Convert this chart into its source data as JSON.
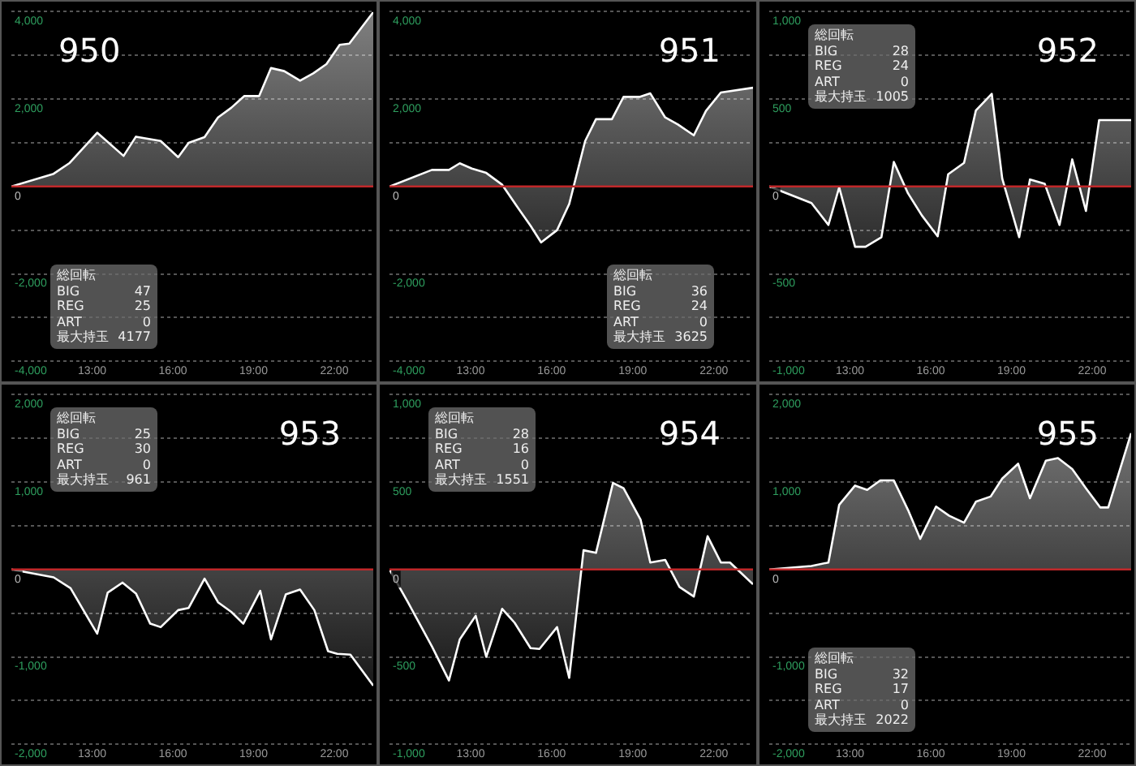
{
  "chart_data": [
    {
      "type": "area",
      "title": "950",
      "color": "#ffffff",
      "xlim": [
        10,
        23.45
      ],
      "xticks": [
        {
          "value": 13,
          "label": "13:00"
        },
        {
          "value": 16,
          "label": "16:00"
        },
        {
          "value": 19,
          "label": "19:00"
        },
        {
          "value": 22,
          "label": "22:00"
        }
      ],
      "ylim": [
        -4000,
        4000
      ],
      "yticks": [
        {
          "value": -4000,
          "label": "-4,000"
        },
        {
          "value": -3000,
          "label": null
        },
        {
          "value": -2000,
          "label": "-2,000"
        },
        {
          "value": -1000,
          "label": null
        },
        {
          "value": 0,
          "label": "0"
        },
        {
          "value": 1000,
          "label": null
        },
        {
          "value": 2000,
          "label": "2,000"
        },
        {
          "value": 3000,
          "label": null
        },
        {
          "value": 4000,
          "label": "4,000"
        }
      ],
      "grid": "y",
      "ref_lines": [
        {
          "axis": "y",
          "value": 0,
          "color": "#c0282a"
        }
      ],
      "annotations": [
        "総回転",
        "BIG 47",
        "REG 25",
        "ART 0",
        "最大持玉 4177"
      ],
      "x": [
        10,
        11.57,
        12.17,
        13.19,
        14.17,
        14.63,
        15.55,
        16.2,
        16.59,
        17.18,
        17.68,
        18.17,
        18.66,
        19.21,
        19.65,
        20.14,
        20.73,
        21.22,
        21.71,
        22.2,
        22.56,
        23.45
      ],
      "values": [
        0,
        290,
        540,
        1230,
        700,
        1140,
        1040,
        670,
        1000,
        1130,
        1580,
        1800,
        2070,
        2070,
        2710,
        2640,
        2420,
        2590,
        2800,
        3240,
        3270,
        3990
      ]
    },
    {
      "type": "area",
      "title": "951",
      "color": "#ffffff",
      "xlim": [
        10,
        23.45
      ],
      "xticks": [
        {
          "value": 13,
          "label": "13:00"
        },
        {
          "value": 16,
          "label": "16:00"
        },
        {
          "value": 19,
          "label": "19:00"
        },
        {
          "value": 22,
          "label": "22:00"
        }
      ],
      "ylim": [
        -4000,
        4000
      ],
      "yticks": [
        {
          "value": -4000,
          "label": "-4,000"
        },
        {
          "value": -3000,
          "label": null
        },
        {
          "value": -2000,
          "label": "-2,000"
        },
        {
          "value": -1000,
          "label": null
        },
        {
          "value": 0,
          "label": "0"
        },
        {
          "value": 1000,
          "label": null
        },
        {
          "value": 2000,
          "label": "2,000"
        },
        {
          "value": 3000,
          "label": null
        },
        {
          "value": 4000,
          "label": "4,000"
        }
      ],
      "grid": "y",
      "ref_lines": [
        {
          "axis": "y",
          "value": 0,
          "color": "#c0282a"
        }
      ],
      "annotations": [
        "総回転",
        "BIG 36",
        "REG 24",
        "ART 0",
        "最大持玉 3625"
      ],
      "x": [
        10,
        11.57,
        12.2,
        12.6,
        13.05,
        13.58,
        14.17,
        14.72,
        15.22,
        15.61,
        16.2,
        16.65,
        17.24,
        17.64,
        18.23,
        18.66,
        19.25,
        19.65,
        20.2,
        20.67,
        21.26,
        21.71,
        22.26,
        23.45
      ],
      "values": [
        0,
        380,
        380,
        530,
        410,
        310,
        40,
        -460,
        -900,
        -1280,
        -1000,
        -400,
        1040,
        1540,
        1540,
        2050,
        2050,
        2130,
        1580,
        1420,
        1170,
        1730,
        2150,
        2260
      ]
    },
    {
      "type": "area",
      "title": "952",
      "color": "#ffffff",
      "xlim": [
        10,
        23.45
      ],
      "xticks": [
        {
          "value": 13,
          "label": "13:00"
        },
        {
          "value": 16,
          "label": "16:00"
        },
        {
          "value": 19,
          "label": "19:00"
        },
        {
          "value": 22,
          "label": "22:00"
        }
      ],
      "ylim": [
        -1000,
        1000
      ],
      "yticks": [
        {
          "value": -1000,
          "label": "-1,000"
        },
        {
          "value": -750,
          "label": null
        },
        {
          "value": -500,
          "label": "-500"
        },
        {
          "value": -250,
          "label": null
        },
        {
          "value": 0,
          "label": "0"
        },
        {
          "value": 250,
          "label": null
        },
        {
          "value": 500,
          "label": "500"
        },
        {
          "value": 750,
          "label": null
        },
        {
          "value": 1000,
          "label": "1,000"
        }
      ],
      "grid": "y",
      "ref_lines": [
        {
          "axis": "y",
          "value": 0,
          "color": "#c0282a"
        }
      ],
      "annotations": [
        "総回転",
        "BIG 28",
        "REG 24",
        "ART 0",
        "最大持玉 1005"
      ],
      "x": [
        10,
        11.57,
        12.2,
        12.6,
        13.19,
        13.58,
        14.17,
        14.63,
        15.16,
        15.67,
        16.26,
        16.65,
        17.24,
        17.68,
        18.27,
        18.66,
        19.29,
        19.69,
        20.24,
        20.79,
        21.26,
        21.77,
        22.26,
        23.45
      ],
      "values": [
        0,
        -95,
        -220,
        -5,
        -345,
        -345,
        -290,
        140,
        -40,
        -165,
        -285,
        70,
        135,
        435,
        530,
        45,
        -290,
        40,
        15,
        -220,
        155,
        -140,
        380,
        380
      ]
    },
    {
      "type": "area",
      "title": "953",
      "color": "#ffffff",
      "xlim": [
        10,
        23.45
      ],
      "xticks": [
        {
          "value": 13,
          "label": "13:00"
        },
        {
          "value": 16,
          "label": "16:00"
        },
        {
          "value": 19,
          "label": "19:00"
        },
        {
          "value": 22,
          "label": "22:00"
        }
      ],
      "ylim": [
        -2000,
        2000
      ],
      "yticks": [
        {
          "value": -2000,
          "label": "-2,000"
        },
        {
          "value": -1500,
          "label": null
        },
        {
          "value": -1000,
          "label": "-1,000"
        },
        {
          "value": -500,
          "label": null
        },
        {
          "value": 0,
          "label": "0"
        },
        {
          "value": 500,
          "label": null
        },
        {
          "value": 1000,
          "label": "1,000"
        },
        {
          "value": 1500,
          "label": null
        },
        {
          "value": 2000,
          "label": "2,000"
        }
      ],
      "grid": "y",
      "ref_lines": [
        {
          "axis": "y",
          "value": 0,
          "color": "#c0282a"
        }
      ],
      "annotations": [
        "総回転",
        "BIG 25",
        "REG 30",
        "ART 0",
        "最大持玉 961"
      ],
      "x": [
        10,
        11.57,
        12.2,
        13.19,
        13.58,
        14.13,
        14.63,
        15.16,
        15.55,
        16.2,
        16.59,
        17.18,
        17.68,
        18.17,
        18.62,
        19.25,
        19.65,
        20.2,
        20.73,
        21.26,
        21.77,
        22.11,
        22.6,
        23.45
      ],
      "values": [
        0,
        -90,
        -215,
        -735,
        -265,
        -150,
        -275,
        -620,
        -660,
        -465,
        -440,
        -105,
        -375,
        -485,
        -620,
        -245,
        -800,
        -285,
        -230,
        -465,
        -935,
        -965,
        -975,
        -1330
      ]
    },
    {
      "type": "area",
      "title": "954",
      "color": "#ffffff",
      "xlim": [
        10,
        23.45
      ],
      "xticks": [
        {
          "value": 13,
          "label": "13:00"
        },
        {
          "value": 16,
          "label": "16:00"
        },
        {
          "value": 19,
          "label": "19:00"
        },
        {
          "value": 22,
          "label": "22:00"
        }
      ],
      "ylim": [
        -1000,
        1000
      ],
      "yticks": [
        {
          "value": -1000,
          "label": "-1,000"
        },
        {
          "value": -750,
          "label": null
        },
        {
          "value": -500,
          "label": "-500"
        },
        {
          "value": -250,
          "label": null
        },
        {
          "value": 0,
          "label": "0"
        },
        {
          "value": 250,
          "label": null
        },
        {
          "value": 500,
          "label": "500"
        },
        {
          "value": 750,
          "label": null
        },
        {
          "value": 1000,
          "label": "1,000"
        }
      ],
      "grid": "y",
      "ref_lines": [
        {
          "axis": "y",
          "value": 0,
          "color": "#c0282a"
        }
      ],
      "annotations": [
        "総回転",
        "BIG 28",
        "REG 16",
        "ART 0",
        "最大持玉 1551"
      ],
      "x": [
        10,
        10.69,
        11.57,
        12.2,
        12.6,
        13.19,
        13.58,
        14.17,
        14.63,
        15.22,
        15.55,
        16.2,
        16.65,
        17.18,
        17.64,
        18.27,
        18.66,
        19.29,
        19.65,
        20.2,
        20.73,
        21.26,
        21.77,
        22.26,
        22.6,
        23.45
      ],
      "values": [
        0,
        -190,
        -440,
        -635,
        -400,
        -265,
        -500,
        -225,
        -305,
        -450,
        -455,
        -330,
        -620,
        110,
        95,
        495,
        465,
        285,
        40,
        55,
        -100,
        -155,
        190,
        40,
        40,
        -85
      ]
    },
    {
      "type": "area",
      "title": "955",
      "color": "#ffffff",
      "xlim": [
        10,
        23.45
      ],
      "xticks": [
        {
          "value": 13,
          "label": "13:00"
        },
        {
          "value": 16,
          "label": "16:00"
        },
        {
          "value": 19,
          "label": "19:00"
        },
        {
          "value": 22,
          "label": "22:00"
        }
      ],
      "ylim": [
        -2000,
        2000
      ],
      "yticks": [
        {
          "value": -2000,
          "label": "-2,000"
        },
        {
          "value": -1500,
          "label": null
        },
        {
          "value": -1000,
          "label": "-1,000"
        },
        {
          "value": -500,
          "label": null
        },
        {
          "value": 0,
          "label": "0"
        },
        {
          "value": 500,
          "label": null
        },
        {
          "value": 1000,
          "label": "1,000"
        },
        {
          "value": 1500,
          "label": null
        },
        {
          "value": 2000,
          "label": "2,000"
        }
      ],
      "grid": "y",
      "ref_lines": [
        {
          "axis": "y",
          "value": 0,
          "color": "#c0282a"
        }
      ],
      "annotations": [
        "総回転",
        "BIG 32",
        "REG 17",
        "ART 0",
        "最大持玉 2022"
      ],
      "x": [
        10,
        11.57,
        12.2,
        12.6,
        13.19,
        13.64,
        14.13,
        14.63,
        15.16,
        15.61,
        16.2,
        16.69,
        17.24,
        17.68,
        18.23,
        18.66,
        19.25,
        19.69,
        20.28,
        20.73,
        21.26,
        21.77,
        22.3,
        22.6,
        23.45
      ],
      "values": [
        0,
        40,
        80,
        740,
        960,
        910,
        1020,
        1020,
        680,
        350,
        720,
        615,
        535,
        775,
        835,
        1040,
        1210,
        815,
        1245,
        1275,
        1150,
        930,
        710,
        710,
        1560
      ]
    }
  ]
}
